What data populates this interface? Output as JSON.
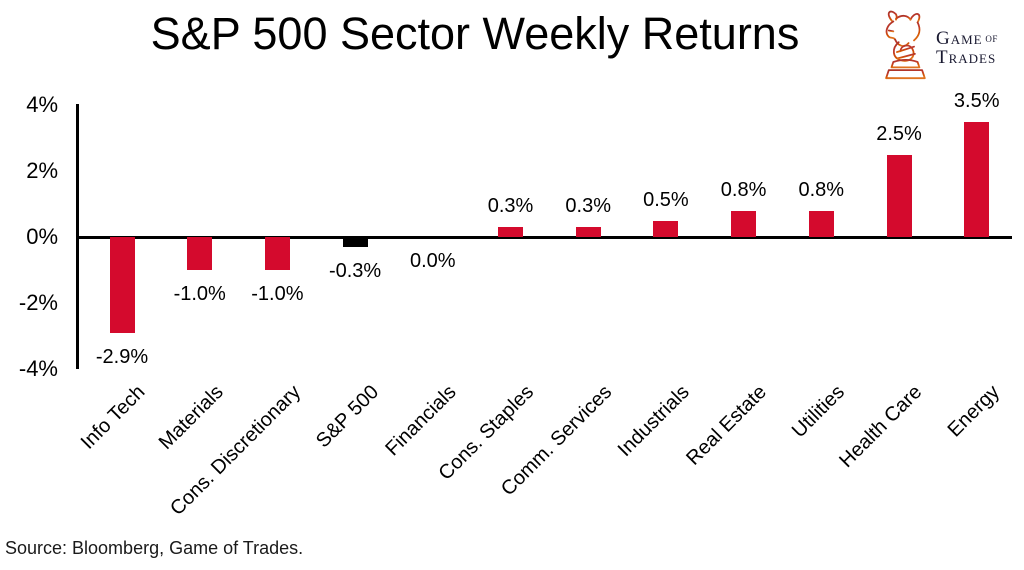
{
  "title": "S&P 500 Sector Weekly Returns",
  "source": "Source: Bloomberg, Game of Trades.",
  "logo": {
    "icon": "bull-knight-chess-piece",
    "word1_initial": "G",
    "word1_rest": "AME",
    "word_of": "OF",
    "word2_initial": "T",
    "word2_rest": "RADES"
  },
  "colors": {
    "bar_default": "#d40a2d",
    "bar_benchmark": "#000000",
    "axis": "#000000",
    "text": "#000000",
    "logo_red_top": "#b03024",
    "logo_orange_bottom": "#e0731f"
  },
  "chart_data": {
    "type": "bar",
    "title": "S&P 500 Sector Weekly Returns",
    "categories": [
      "Info Tech",
      "Materials",
      "Cons. Discretionary",
      "S&P 500",
      "Financials",
      "Cons. Staples",
      "Comm. Services",
      "Industrials",
      "Real Estate",
      "Utilities",
      "Health Care",
      "Energy"
    ],
    "values": [
      -2.9,
      -1.0,
      -1.0,
      -0.3,
      0.0,
      0.3,
      0.3,
      0.5,
      0.8,
      0.8,
      2.5,
      3.5
    ],
    "value_labels": [
      "-2.9%",
      "-1.0%",
      "-1.0%",
      "-0.3%",
      "0.0%",
      "0.3%",
      "0.3%",
      "0.5%",
      "0.8%",
      "0.8%",
      "2.5%",
      "3.5%"
    ],
    "benchmark_index": 3,
    "xlabel": "",
    "ylabel": "",
    "y_ticks": [
      "4%",
      "2%",
      "0%",
      "-2%",
      "-4%"
    ],
    "y_tick_values": [
      4,
      2,
      0,
      -2,
      -4
    ],
    "ylim": [
      -4,
      4
    ],
    "grid": false,
    "legend": false,
    "x_label_rotation_deg": 45
  }
}
